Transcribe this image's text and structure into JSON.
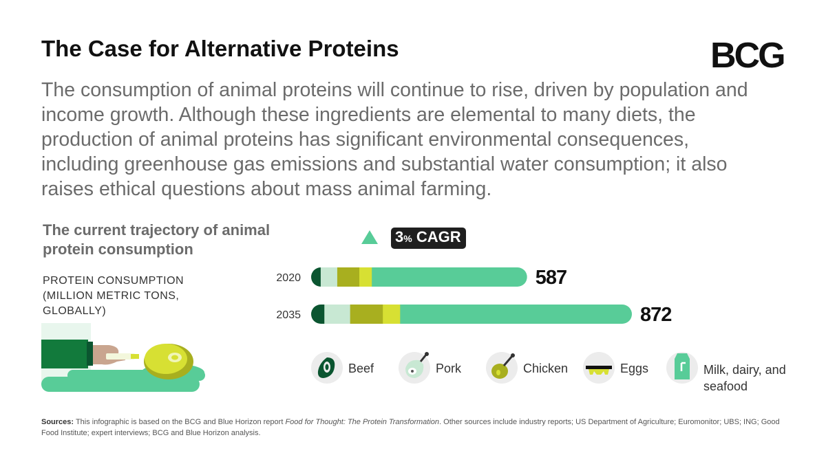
{
  "header": {
    "title": "The Case for Alternative Proteins",
    "logo": "BCG"
  },
  "intro": "The consumption of animal proteins will continue to rise, driven by population and income growth. Although these ingredients are elemental to many diets, the production of animal proteins has significant environmental consequences, including greenhouse gas emissions and substantial water consumption; it also raises ethical questions about mass animal farming.",
  "chart_data": {
    "type": "bar",
    "orientation": "horizontal",
    "stacked": true,
    "title": "The current trajectory of animal protein consumption",
    "ylabel": "PROTEIN CONSUMPTION (MILLION METRIC TONS, GLOBALLY)",
    "categories": [
      "2020",
      "2035"
    ],
    "totals": [
      "587",
      "872"
    ],
    "total_values": [
      587,
      872
    ],
    "growth_label_num": "3",
    "growth_label_pct": "%",
    "growth_label_text": "CAGR",
    "series": [
      {
        "name": "Beef",
        "color": "#0b5530",
        "values": [
          26,
          36
        ]
      },
      {
        "name": "Pork",
        "color": "#c8e8d3",
        "values": [
          45,
          70
        ]
      },
      {
        "name": "Chicken",
        "color": "#a8af1f",
        "values": [
          60,
          89
        ]
      },
      {
        "name": "Eggs",
        "color": "#d7e033",
        "values": [
          34,
          47
        ]
      },
      {
        "name": "Milk, dairy, and seafood",
        "color": "#58cc98",
        "values": [
          422,
          630
        ]
      }
    ],
    "legend": [
      "Beef",
      "Pork",
      "Chicken",
      "Eggs",
      "Milk, dairy, and seafood"
    ]
  },
  "sources": {
    "label": "Sources:",
    "text_before": "This infographic is based on the BCG and Blue Horizon report",
    "report_title": "Food for Thought: The Protein Transformation",
    "text_after": ". Other sources include industry reports; US Department of Agriculture; Euromonitor; UBS; ING; Good Food Institute; expert interviews; BCG and Blue Horizon analysis."
  },
  "icons": {
    "beef": "steak-icon",
    "pork": "ham-icon",
    "chicken": "drumstick-icon",
    "eggs": "eggs-icon",
    "milk": "milk-carton-icon",
    "illustration": "hand-holding-steak-illustration",
    "growth": "up-triangle-icon"
  }
}
